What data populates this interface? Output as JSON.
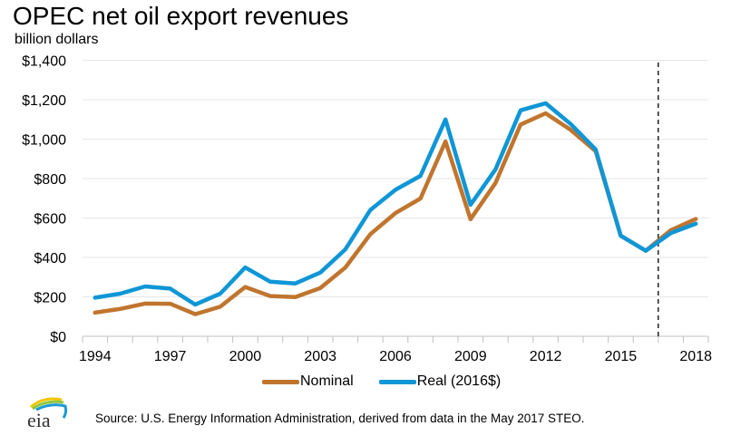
{
  "chart_data": {
    "type": "line",
    "title": "OPEC net oil export revenues",
    "ylabel": "billion dollars",
    "xlabel": "",
    "ylim": [
      0,
      1400
    ],
    "yticks": [
      0,
      200,
      400,
      600,
      800,
      1000,
      1200,
      1400
    ],
    "ytick_labels": [
      "$0",
      "$200",
      "$400",
      "$600",
      "$800",
      "$1,000",
      "$1,200",
      "$1,400"
    ],
    "x": [
      1994,
      1995,
      1996,
      1997,
      1998,
      1999,
      2000,
      2001,
      2002,
      2003,
      2004,
      2005,
      2006,
      2007,
      2008,
      2009,
      2010,
      2011,
      2012,
      2013,
      2014,
      2015,
      2016,
      2017,
      2018
    ],
    "xtick_labels": [
      "1994",
      "1997",
      "2000",
      "2003",
      "2006",
      "2009",
      "2012",
      "2015",
      "2018"
    ],
    "grid": "horizontal",
    "forecast_divider_after": 2016,
    "series": [
      {
        "name": "Nominal",
        "color": "#c0752e",
        "values": [
          120,
          139,
          166,
          165,
          112,
          150,
          250,
          204,
          199,
          245,
          349,
          518,
          625,
          699,
          988,
          594,
          778,
          1074,
          1131,
          1047,
          939,
          510,
          434,
          538,
          595
        ]
      },
      {
        "name": "Real (2016$)",
        "color": "#0f96d6",
        "values": [
          196,
          216,
          253,
          242,
          161,
          216,
          349,
          277,
          268,
          323,
          441,
          641,
          743,
          814,
          1100,
          667,
          847,
          1146,
          1182,
          1077,
          947,
          510,
          434,
          523,
          571
        ]
      }
    ],
    "legend_position": "bottom-center"
  },
  "header": {
    "title": "OPEC net oil export revenues",
    "subtitle": "billion dollars"
  },
  "legend": {
    "items": [
      {
        "label": "Nominal",
        "color": "#c0752e"
      },
      {
        "label": "Real (2016$)",
        "color": "#0f96d6"
      }
    ]
  },
  "footer": {
    "source": "Source: U.S. Energy Information Administration, derived from data in the May 2017 STEO.",
    "logo_text": "eia"
  }
}
